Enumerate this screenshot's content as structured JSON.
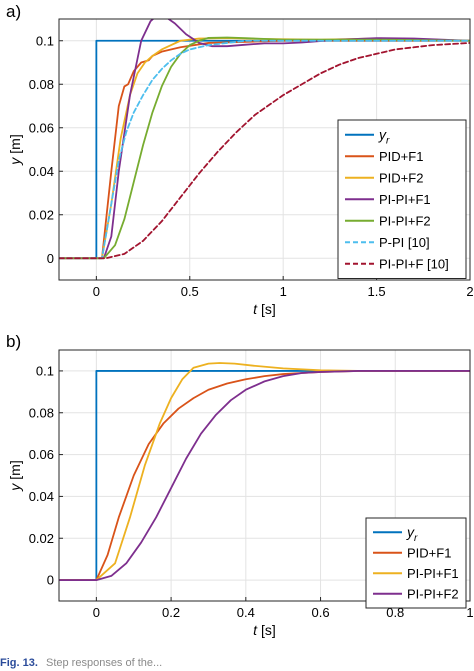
{
  "chart_data": [
    {
      "panel_label": "a)",
      "type": "line",
      "xlabel_var": "t",
      "xlabel_unit": "[s]",
      "ylabel_var": "y",
      "ylabel_unit": "[m]",
      "xlim": [
        -0.2,
        2.0
      ],
      "ylim": [
        -0.01,
        0.11
      ],
      "xticks": [
        0,
        0.5,
        1,
        1.5,
        2
      ],
      "xtick_labels": [
        "0",
        "0.5",
        "1",
        "1.5",
        "2"
      ],
      "yticks": [
        0,
        0.02,
        0.04,
        0.06,
        0.08,
        0.1
      ],
      "ytick_labels": [
        "0",
        "0.02",
        "0.04",
        "0.06",
        "0.08",
        "0.1"
      ],
      "grid": true,
      "legend_position": "bottom-right",
      "series": [
        {
          "name": "y",
          "name_sub": "r",
          "color": "#0072BD",
          "dash": "",
          "x": [
            -0.2,
            0,
            0,
            2.0
          ],
          "y": [
            0,
            0,
            0.1,
            0.1
          ]
        },
        {
          "name": "PID+F1",
          "color": "#D95319",
          "dash": "",
          "x": [
            -0.2,
            0.03,
            0.08,
            0.12,
            0.15,
            0.17,
            0.2,
            0.24,
            0.28,
            0.3,
            0.35,
            0.45,
            0.6,
            0.8,
            1.0,
            2.0
          ],
          "y": [
            0,
            0,
            0.04,
            0.07,
            0.079,
            0.08,
            0.086,
            0.09,
            0.091,
            0.093,
            0.095,
            0.097,
            0.099,
            0.0995,
            0.1,
            0.1
          ]
        },
        {
          "name": "PID+F2",
          "color": "#EDB120",
          "dash": "",
          "x": [
            -0.2,
            0.03,
            0.08,
            0.13,
            0.18,
            0.22,
            0.26,
            0.3,
            0.35,
            0.45,
            0.55,
            0.7,
            0.9,
            1.2,
            1.5,
            2.0
          ],
          "y": [
            0,
            0,
            0.025,
            0.055,
            0.075,
            0.085,
            0.09,
            0.093,
            0.096,
            0.1,
            0.101,
            0.1012,
            0.1008,
            0.1005,
            0.101,
            0.1
          ]
        },
        {
          "name": "PI-PI+F1",
          "color": "#7E2F8E",
          "dash": "",
          "x": [
            -0.2,
            0.04,
            0.08,
            0.12,
            0.18,
            0.24,
            0.29,
            0.33,
            0.37,
            0.42,
            0.48,
            0.55,
            0.62,
            0.7,
            0.8,
            0.9,
            1.0,
            1.1,
            1.3,
            1.5,
            1.7,
            2.0
          ],
          "y": [
            0,
            0,
            0.01,
            0.04,
            0.075,
            0.1,
            0.109,
            0.112,
            0.111,
            0.108,
            0.103,
            0.099,
            0.0975,
            0.0975,
            0.0982,
            0.0988,
            0.0988,
            0.0992,
            0.1005,
            0.1012,
            0.101,
            0.1
          ]
        },
        {
          "name": "PI-PI+F2",
          "color": "#77AC30",
          "dash": "",
          "x": [
            -0.2,
            0.04,
            0.1,
            0.15,
            0.2,
            0.25,
            0.3,
            0.35,
            0.4,
            0.45,
            0.5,
            0.55,
            0.6,
            0.7,
            0.8,
            1.0,
            1.5,
            2.0
          ],
          "y": [
            0,
            0,
            0.006,
            0.018,
            0.035,
            0.052,
            0.067,
            0.079,
            0.088,
            0.094,
            0.098,
            0.1,
            0.1013,
            0.1015,
            0.1012,
            0.1005,
            0.1005,
            0.1
          ]
        },
        {
          "name": "P-PI [10]",
          "color": "#4DBEEE",
          "dash": "5,3",
          "x": [
            -0.2,
            0.03,
            0.08,
            0.12,
            0.16,
            0.2,
            0.25,
            0.3,
            0.35,
            0.4,
            0.45,
            0.5,
            0.6,
            0.7,
            0.8,
            1.0,
            2.0
          ],
          "y": [
            0,
            0,
            0.025,
            0.045,
            0.058,
            0.067,
            0.075,
            0.082,
            0.087,
            0.091,
            0.094,
            0.096,
            0.098,
            0.099,
            0.1,
            0.1,
            0.1
          ]
        },
        {
          "name": "PI-PI+F [10]",
          "color": "#A2142F",
          "dash": "5,3",
          "x": [
            -0.2,
            0.05,
            0.15,
            0.25,
            0.35,
            0.45,
            0.55,
            0.65,
            0.75,
            0.85,
            1.0,
            1.1,
            1.2,
            1.3,
            1.4,
            1.5,
            1.6,
            1.7,
            1.8,
            2.0
          ],
          "y": [
            0,
            0,
            0.002,
            0.008,
            0.017,
            0.028,
            0.039,
            0.049,
            0.058,
            0.066,
            0.075,
            0.08,
            0.085,
            0.089,
            0.092,
            0.094,
            0.096,
            0.097,
            0.098,
            0.099
          ]
        }
      ]
    },
    {
      "panel_label": "b)",
      "type": "line",
      "xlabel_var": "t",
      "xlabel_unit": "[s]",
      "ylabel_var": "y",
      "ylabel_unit": "[m]",
      "xlim": [
        -0.1,
        1.0
      ],
      "ylim": [
        -0.01,
        0.11
      ],
      "xticks": [
        0,
        0.2,
        0.4,
        0.6,
        0.8,
        1
      ],
      "xtick_labels": [
        "0",
        "0.2",
        "0.4",
        "0.6",
        "0.8",
        "1"
      ],
      "yticks": [
        0,
        0.02,
        0.04,
        0.06,
        0.08,
        0.1
      ],
      "ytick_labels": [
        "0",
        "0.02",
        "0.04",
        "0.06",
        "0.08",
        "0.1"
      ],
      "grid": true,
      "legend_position": "bottom-right",
      "series": [
        {
          "name": "y",
          "name_sub": "r",
          "color": "#0072BD",
          "dash": "",
          "x": [
            -0.1,
            0,
            0,
            1.0
          ],
          "y": [
            0,
            0,
            0.1,
            0.1
          ]
        },
        {
          "name": "PID+F1",
          "color": "#D95319",
          "dash": "",
          "x": [
            -0.1,
            0.0,
            0.03,
            0.06,
            0.1,
            0.14,
            0.18,
            0.22,
            0.26,
            0.3,
            0.35,
            0.4,
            0.45,
            0.5,
            0.55,
            0.6,
            0.7,
            0.8,
            1.0
          ],
          "y": [
            0,
            0,
            0.012,
            0.03,
            0.05,
            0.065,
            0.075,
            0.082,
            0.087,
            0.091,
            0.094,
            0.096,
            0.0975,
            0.0985,
            0.099,
            0.0995,
            0.1,
            0.1,
            0.1
          ]
        },
        {
          "name": "PI-PI+F1",
          "color": "#EDB120",
          "dash": "",
          "x": [
            -0.1,
            0.0,
            0.05,
            0.09,
            0.13,
            0.17,
            0.2,
            0.23,
            0.26,
            0.3,
            0.33,
            0.37,
            0.42,
            0.5,
            0.6,
            0.7,
            1.0
          ],
          "y": [
            0,
            0,
            0.008,
            0.03,
            0.055,
            0.075,
            0.087,
            0.096,
            0.1015,
            0.1035,
            0.1038,
            0.1035,
            0.1025,
            0.1012,
            0.1003,
            0.1,
            0.1
          ]
        },
        {
          "name": "PI-PI+F2",
          "color": "#7E2F8E",
          "dash": "",
          "x": [
            -0.1,
            0.0,
            0.04,
            0.08,
            0.12,
            0.16,
            0.2,
            0.24,
            0.28,
            0.32,
            0.36,
            0.4,
            0.45,
            0.5,
            0.55,
            0.6,
            0.7,
            0.8,
            1.0
          ],
          "y": [
            0,
            0,
            0.002,
            0.008,
            0.018,
            0.03,
            0.044,
            0.058,
            0.07,
            0.079,
            0.086,
            0.091,
            0.095,
            0.0975,
            0.099,
            0.0995,
            0.1,
            0.1,
            0.1
          ]
        }
      ]
    }
  ]
}
